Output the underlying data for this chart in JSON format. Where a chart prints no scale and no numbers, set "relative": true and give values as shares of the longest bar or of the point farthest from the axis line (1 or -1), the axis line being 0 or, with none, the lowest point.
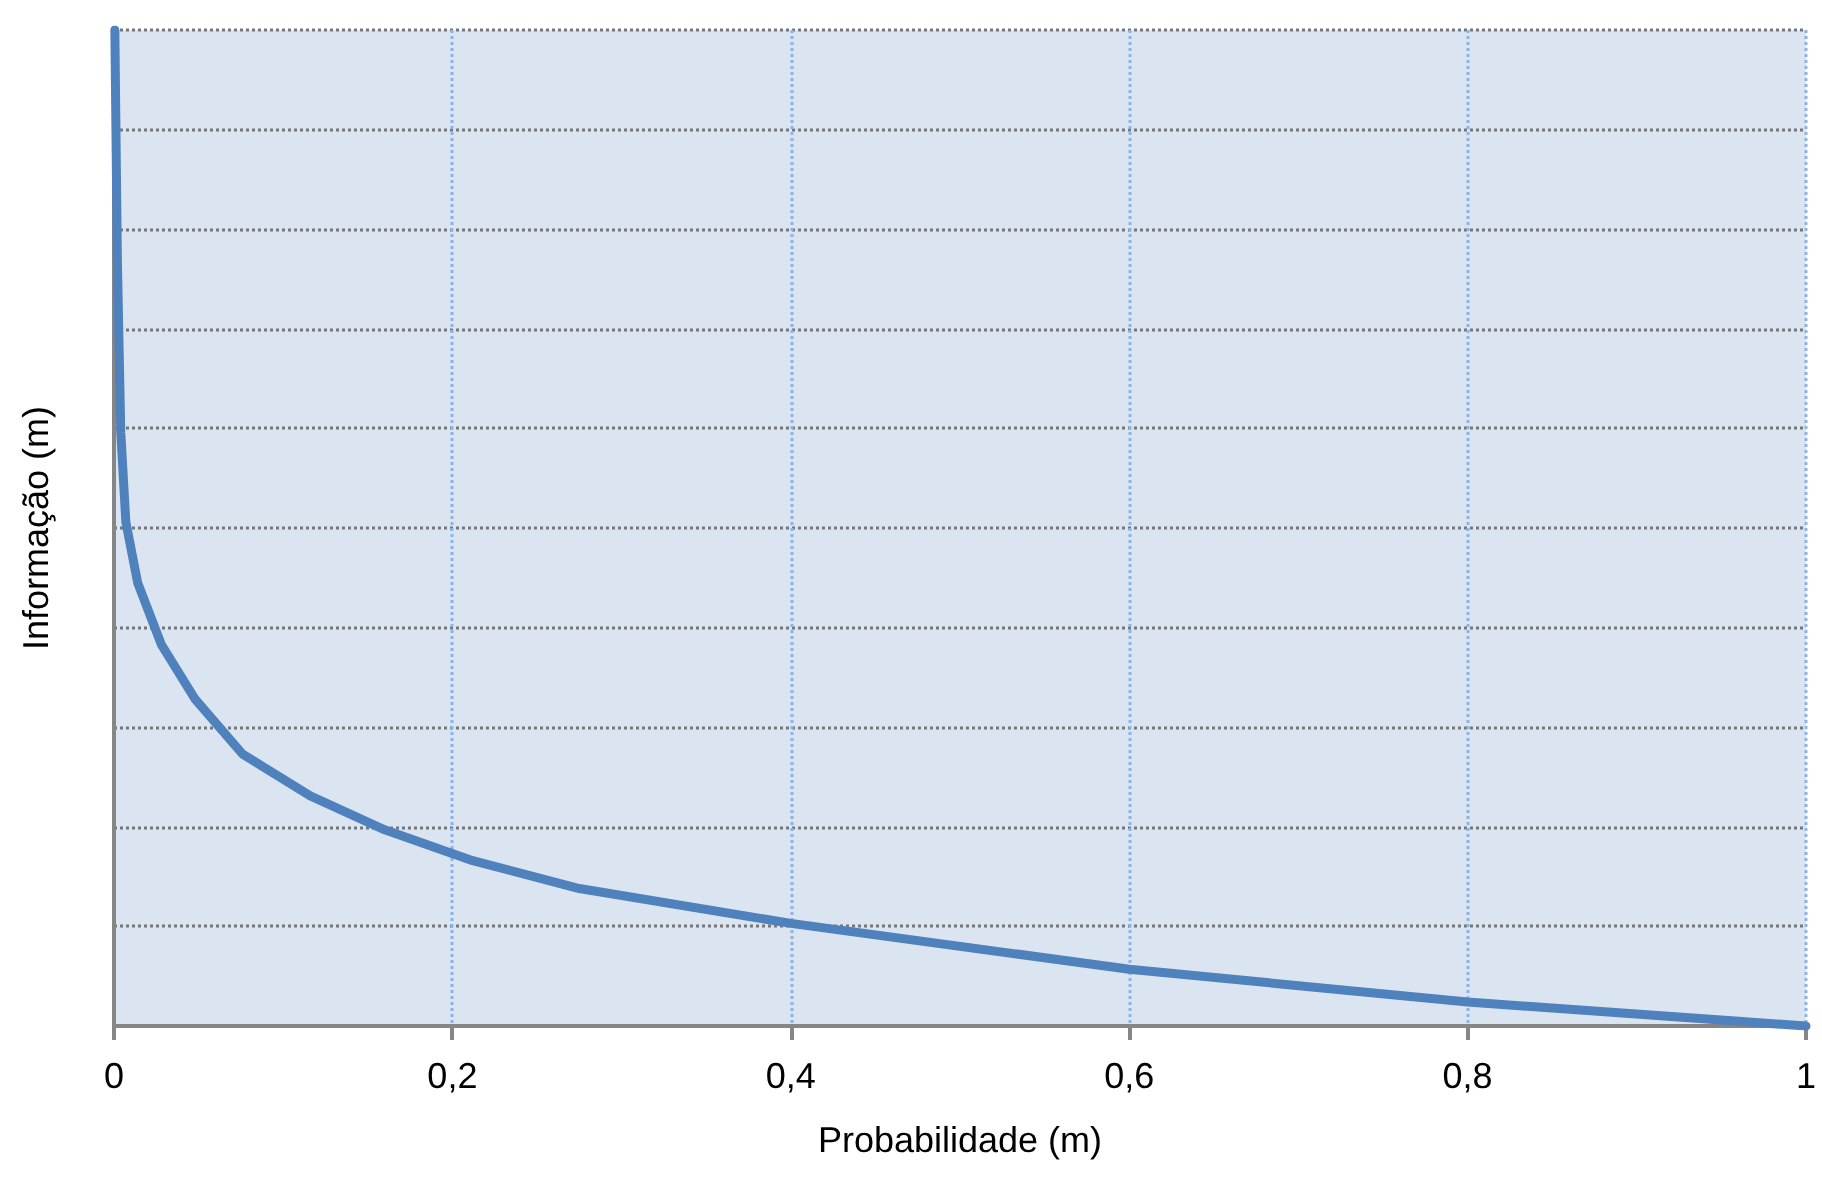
{
  "chart_data": {
    "type": "line",
    "xlabel": "Probabilidade (m)",
    "ylabel": "Informação (m)",
    "relative": true,
    "xlim": [
      0,
      1
    ],
    "xticks": [
      0,
      {
        "value": 0.2,
        "label": "0,2"
      },
      {
        "value": 0.4,
        "label": "0,4"
      },
      {
        "value": 0.6,
        "label": "0,6"
      },
      {
        "value": 0.8,
        "label": "0,8"
      },
      1
    ],
    "grid": true,
    "marker": "none",
    "line_style": "solid",
    "series": [
      {
        "color": "#4f81bd",
        "x": [
          0.0005,
          0.002,
          0.004,
          0.007,
          0.014,
          0.028,
          0.048,
          0.076,
          0.116,
          0.16,
          0.212,
          0.275,
          0.4,
          0.6,
          0.8,
          1
        ],
        "values": [
          1,
          0.768,
          0.596,
          0.506,
          0.445,
          0.383,
          0.328,
          0.273,
          0.231,
          0.197,
          0.166,
          0.138,
          0.103,
          0.057,
          0.024,
          0
        ]
      }
    ]
  }
}
